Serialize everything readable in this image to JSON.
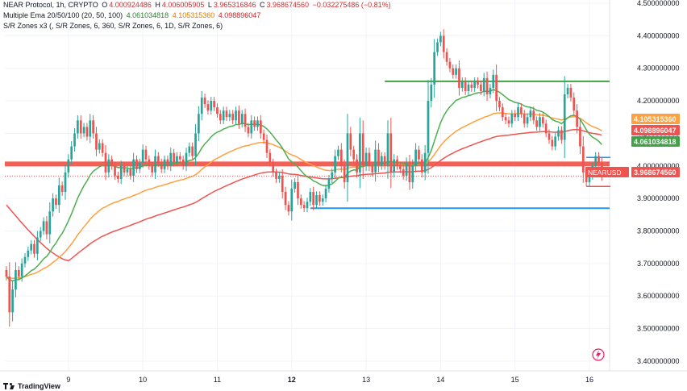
{
  "header": {
    "symbol": "NEAR Protocol, 1h, CRYPTO",
    "o_label": "O",
    "o_value": "4.000924486",
    "h_label": "H",
    "h_value": "4.006005905",
    "l_label": "L",
    "l_value": "3.965316846",
    "c_label": "C",
    "c_value": "3.968674560",
    "change": "−0.032275486 (−0.81%)",
    "ema_title": "Multiple Ema 20/50/100 (20, 50, 100)",
    "ema20": "4.061034818",
    "ema50": "4.105315360",
    "ema100": "4.098896047",
    "sr_title": "S/R Zones x3 (, S/R Zones, 6, 360, S/R Zones, 6, 1D, S/R Zones, 6)"
  },
  "brand": "TradingView",
  "colors": {
    "up": "#26a69a",
    "down": "#ef5350",
    "ema20": "#4caf50",
    "ema50": "#ffa040",
    "ema100": "#ef5350",
    "support": "#2196f3",
    "resistance": "#43a047",
    "zone": "#f44336"
  },
  "chart_data": {
    "type": "candlestick",
    "symbol": "NEARUSD",
    "timeframe": "1h",
    "y_ticks": [
      "3.400000000",
      "3.500000000",
      "3.600000000",
      "3.700000000",
      "3.800000000",
      "3.900000000",
      "4.000000000",
      "4.100000000",
      "4.200000000",
      "4.300000000",
      "4.400000000",
      "4.500000000"
    ],
    "ylim": [
      3.37,
      4.51
    ],
    "x_ticks": [
      {
        "label": "9",
        "bar": 20
      },
      {
        "label": "10",
        "bar": 44
      },
      {
        "label": "11",
        "bar": 68
      },
      {
        "label": "12",
        "bar": 92
      },
      {
        "label": "13",
        "bar": 116
      },
      {
        "label": "14",
        "bar": 140
      },
      {
        "label": "15",
        "bar": 164
      },
      {
        "label": "16",
        "bar": 188
      }
    ],
    "bars": 195,
    "closes": [
      3.66,
      3.55,
      3.62,
      3.68,
      3.66,
      3.7,
      3.72,
      3.74,
      3.76,
      3.73,
      3.78,
      3.8,
      3.83,
      3.79,
      3.86,
      3.9,
      3.88,
      3.94,
      3.92,
      3.98,
      4.02,
      4.06,
      4.1,
      4.14,
      4.1,
      4.12,
      4.09,
      4.14,
      4.1,
      4.05,
      4.07,
      4.04,
      3.98,
      4.02,
      4.0,
      3.97,
      3.96,
      4.0,
      3.98,
      3.99,
      3.97,
      4.02,
      3.99,
      4.01,
      4.05,
      4.02,
      4.0,
      3.98,
      4.03,
      4.01,
      3.99,
      4.02,
      4.0,
      4.04,
      4.01,
      4.03,
      4.02,
      4.0,
      4.04,
      4.06,
      4.03,
      4.1,
      4.16,
      4.21,
      4.19,
      4.17,
      4.2,
      4.18,
      4.16,
      4.14,
      4.17,
      4.15,
      4.16,
      4.14,
      4.17,
      4.13,
      4.16,
      4.12,
      4.1,
      4.14,
      4.12,
      4.14,
      4.1,
      4.08,
      4.04,
      4.01,
      3.98,
      3.96,
      3.97,
      3.92,
      3.88,
      3.86,
      3.93,
      3.95,
      3.9,
      3.88,
      3.87,
      3.89,
      3.92,
      3.88,
      3.91,
      3.89,
      3.9,
      3.93,
      3.96,
      3.98,
      4.03,
      4.05,
      4.0,
      3.95,
      4.1,
      4.05,
      4.02,
      3.98,
      4.1,
      4.0,
      4.04,
      4.0,
      3.98,
      4.05,
      4.0,
      4.03,
      4.0,
      4.1,
      3.98,
      4.02,
      4.0,
      3.99,
      3.97,
      4.01,
      3.95,
      4.0,
      4.05,
      4.02,
      3.98,
      4.04,
      4.2,
      4.25,
      4.35,
      4.38,
      4.4,
      4.35,
      4.32,
      4.3,
      4.28,
      4.3,
      4.24,
      4.26,
      4.23,
      4.25,
      4.24,
      4.26,
      4.25,
      4.23,
      4.27,
      4.22,
      4.24,
      4.28,
      4.2,
      4.18,
      4.15,
      4.14,
      4.13,
      4.16,
      4.15,
      4.18,
      4.16,
      4.13,
      4.15,
      4.17,
      4.14,
      4.12,
      4.15,
      4.13,
      4.1,
      4.08,
      4.06,
      4.09,
      4.11,
      4.08,
      4.22,
      4.24,
      4.21,
      4.17,
      4.12,
      4.06,
      3.98,
      3.95,
      3.97,
      4.0,
      4.03,
      4.01,
      3.97
    ],
    "ema20": {
      "name": "EMA 20"
    },
    "ema50": {
      "name": "EMA 50"
    },
    "ema100": {
      "name": "EMA 100"
    },
    "resistance_line": {
      "value": 4.26,
      "from_bar": 122,
      "to_bar": 194
    },
    "support_line": {
      "value": 3.87,
      "from_bar": 98,
      "to_bar": 194
    },
    "upper_zone": {
      "value": 4.006,
      "from_bar": 0,
      "to_bar": 194
    },
    "small_line_blue": {
      "value": 4.026
    },
    "small_line_red": {
      "value": 3.937
    },
    "price_labels": [
      {
        "text": "4.105315360",
        "value": 4.10531536,
        "color": "#ffa040"
      },
      {
        "text": "4.098896047",
        "value": 4.098896047,
        "color": "#ef5350"
      },
      {
        "text": "4.061034818",
        "value": 4.061034818,
        "color": "#43a047"
      },
      {
        "text": "3.968674560",
        "value": 3.96867456,
        "color": "#ef5350"
      }
    ],
    "current_label": "NEARUSD",
    "current_price": 3.96867456
  }
}
